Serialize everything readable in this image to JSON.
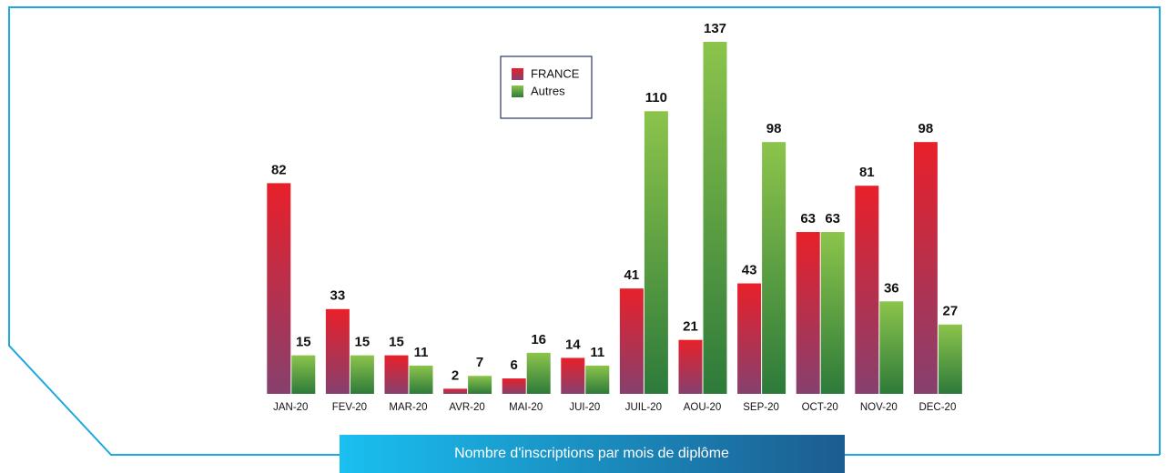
{
  "chart_data": {
    "type": "bar",
    "title": "Nombre d'inscriptions par mois de diplôme",
    "categories": [
      "JAN-20",
      "FEV-20",
      "MAR-20",
      "AVR-20",
      "MAI-20",
      "JUI-20",
      "JUIL-20",
      "AOU-20",
      "SEP-20",
      "OCT-20",
      "NOV-20",
      "DEC-20"
    ],
    "series": [
      {
        "name": "FRANCE",
        "color": "#e8202a",
        "values": [
          82,
          33,
          15,
          2,
          6,
          14,
          41,
          21,
          43,
          63,
          81,
          98
        ]
      },
      {
        "name": "Autres",
        "color": "#8cc44b",
        "values": [
          15,
          15,
          11,
          7,
          16,
          11,
          110,
          137,
          98,
          63,
          36,
          27
        ]
      }
    ],
    "ylim": [
      0,
      137
    ]
  }
}
